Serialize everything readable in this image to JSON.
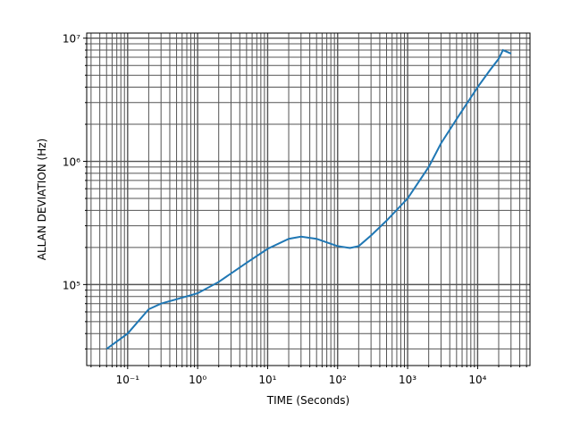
{
  "chart_data": {
    "type": "line",
    "xlabel": "TIME (Seconds)",
    "ylabel": "ALLAN DEVIATION (Hz)",
    "xscale": "log",
    "yscale": "log",
    "grid": "both",
    "xlim": [
      0.026,
      56000
    ],
    "ylim": [
      22000,
      11000000
    ],
    "xticks": [
      {
        "value": 0.1,
        "label": "10⁻¹"
      },
      {
        "value": 1,
        "label": "10⁰"
      },
      {
        "value": 10,
        "label": "10¹"
      },
      {
        "value": 100,
        "label": "10²"
      },
      {
        "value": 1000,
        "label": "10³"
      },
      {
        "value": 10000,
        "label": "10⁴"
      }
    ],
    "yticks": [
      {
        "value": 100000,
        "label": "10⁵"
      },
      {
        "value": 1000000,
        "label": "10⁶"
      },
      {
        "value": 10000000,
        "label": "10⁷"
      }
    ],
    "x": [
      0.05,
      0.1,
      0.2,
      0.3,
      0.5,
      1,
      2,
      5,
      10,
      20,
      30,
      50,
      100,
      150,
      200,
      300,
      500,
      1000,
      2000,
      3000,
      5000,
      10000,
      15000,
      20000,
      23000,
      30000
    ],
    "series": [
      {
        "color": "#1f77b4",
        "values": [
          30000,
          40000,
          63000,
          70000,
          76000,
          85000,
          105000,
          150000,
          195000,
          235000,
          245000,
          235000,
          205000,
          198000,
          205000,
          250000,
          330000,
          500000,
          900000,
          1400000,
          2200000,
          4000000,
          5500000,
          6800000,
          8000000,
          7500000
        ]
      }
    ]
  }
}
